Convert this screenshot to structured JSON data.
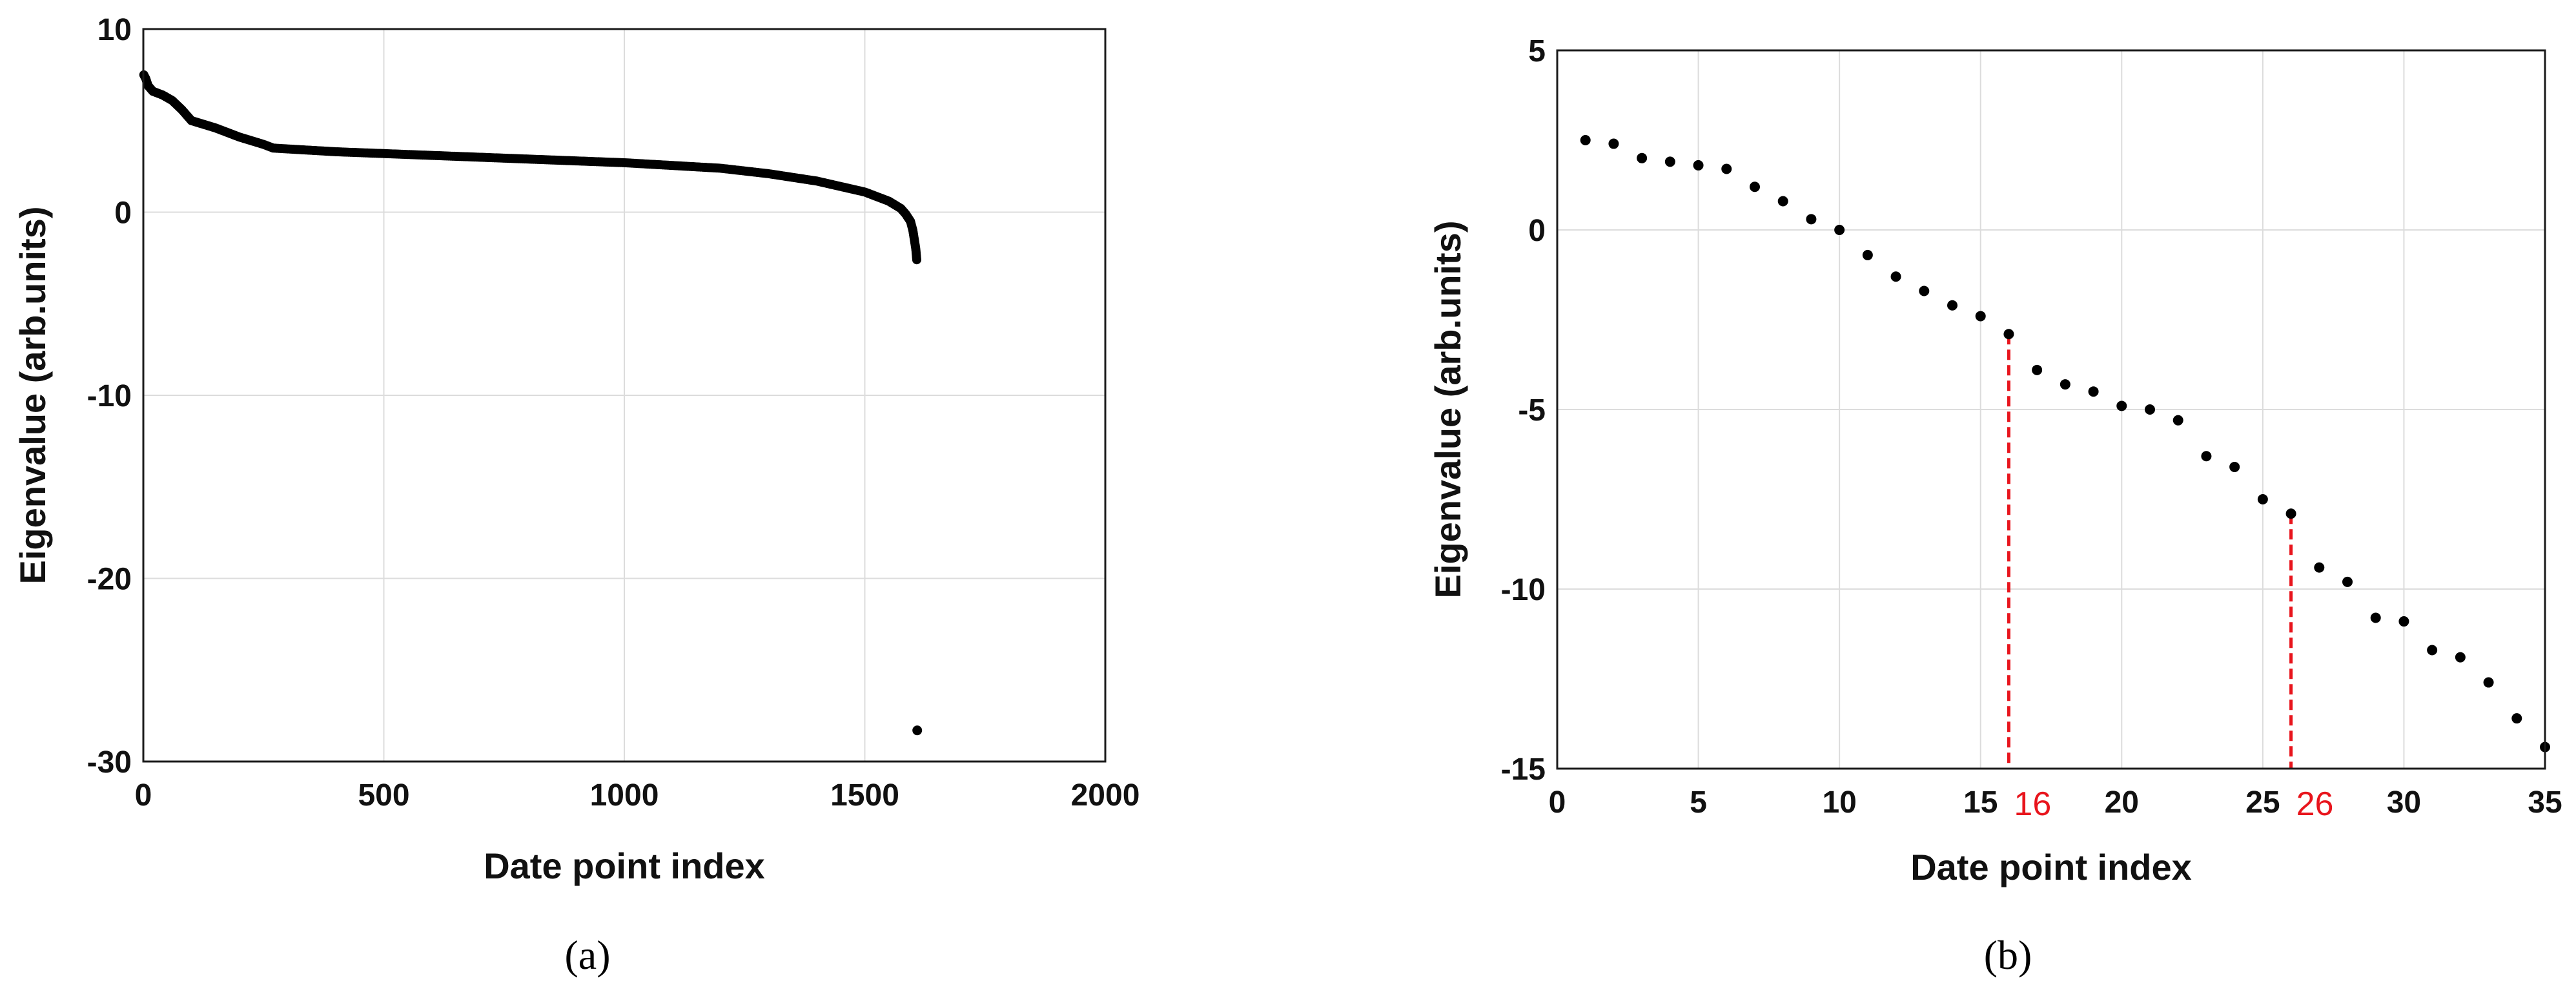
{
  "chart_data": [
    {
      "type": "scatter",
      "caption": "(a)",
      "xlabel": "Date point index",
      "ylabel": "Eigenvalue (arb.units)",
      "xlim": [
        0,
        2000
      ],
      "ylim": [
        -30,
        10
      ],
      "xticks": [
        "0",
        "500",
        "1000",
        "1500",
        "2000"
      ],
      "yticks": [
        "10",
        "0",
        "-10",
        "-20",
        "-30"
      ],
      "grid": true,
      "marker_color": "#000000",
      "curve_knots": [
        [
          1,
          7.5
        ],
        [
          5,
          7.3
        ],
        [
          10,
          6.9
        ],
        [
          20,
          6.6
        ],
        [
          40,
          6.4
        ],
        [
          60,
          6.1
        ],
        [
          80,
          5.6
        ],
        [
          100,
          5.0
        ],
        [
          150,
          4.6
        ],
        [
          200,
          4.1
        ],
        [
          250,
          3.7
        ],
        [
          270,
          3.5
        ],
        [
          400,
          3.3
        ],
        [
          600,
          3.1
        ],
        [
          800,
          2.9
        ],
        [
          1000,
          2.7
        ],
        [
          1200,
          2.4
        ],
        [
          1300,
          2.1
        ],
        [
          1400,
          1.7
        ],
        [
          1500,
          1.1
        ],
        [
          1550,
          0.6
        ],
        [
          1575,
          0.2
        ],
        [
          1585,
          -0.1
        ],
        [
          1595,
          -0.5
        ],
        [
          1600,
          -1.0
        ],
        [
          1603,
          -1.5
        ],
        [
          1606,
          -2.0
        ],
        [
          1608,
          -2.6
        ]
      ],
      "points": [
        [
          1609,
          -28.3
        ]
      ]
    },
    {
      "type": "scatter",
      "caption": "(b)",
      "xlabel": "Date point index",
      "ylabel": "Eigenvalue (arb.units)",
      "xlim": [
        0,
        35
      ],
      "ylim": [
        -15,
        5
      ],
      "xticks": [
        "0",
        "5",
        "10",
        "15",
        "20",
        "25",
        "30",
        "35"
      ],
      "yticks": [
        "5",
        "0",
        "-5",
        "-10",
        "-15"
      ],
      "grid": true,
      "marker_color": "#000000",
      "annotation_color": "#e8141c",
      "x": [
        1,
        2,
        3,
        4,
        5,
        6,
        7,
        8,
        9,
        10,
        11,
        12,
        13,
        14,
        15,
        16,
        17,
        18,
        19,
        20,
        21,
        22,
        23,
        24,
        25,
        26,
        27,
        28,
        29,
        30,
        31,
        32,
        33,
        34,
        35
      ],
      "y": [
        2.5,
        2.4,
        2.0,
        1.9,
        1.8,
        1.7,
        1.2,
        0.8,
        0.3,
        0.0,
        -0.7,
        -1.3,
        -1.7,
        -2.1,
        -2.4,
        -2.9,
        -3.9,
        -4.3,
        -4.5,
        -4.9,
        -5.0,
        -5.3,
        -6.3,
        -6.6,
        -7.5,
        -7.9,
        -9.4,
        -9.8,
        -10.8,
        -10.9,
        -11.7,
        -11.9,
        -12.6,
        -13.6,
        -14.4
      ],
      "markers": [
        {
          "x": 16,
          "y": -2.9,
          "label": "16"
        },
        {
          "x": 26,
          "y": -7.9,
          "label": "26"
        }
      ]
    }
  ]
}
